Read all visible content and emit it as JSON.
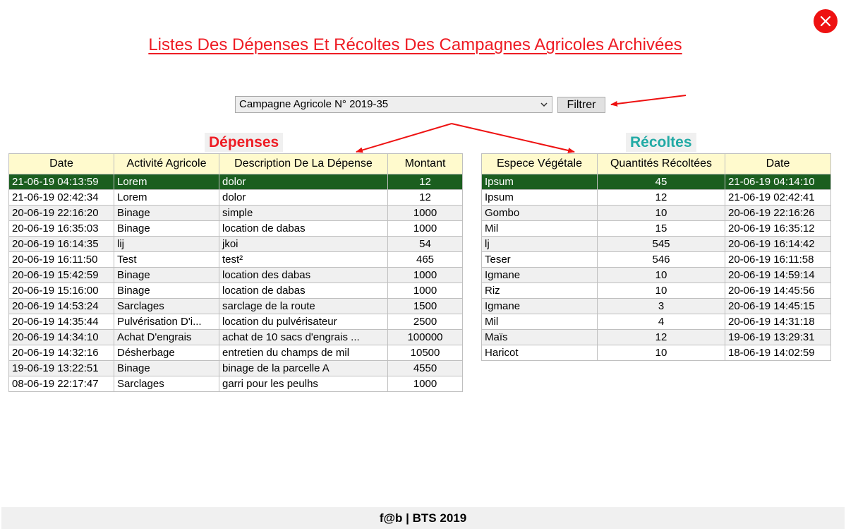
{
  "page": {
    "title": "Listes Des Dépenses Et Récoltes Des Campagnes Agricoles Archivées",
    "footer": "f@b | BTS 2019"
  },
  "filter": {
    "selected": "Campagne Agricole N° 2019-35",
    "button_label": "Filtrer"
  },
  "depenses": {
    "title": "Dépenses",
    "columns": [
      "Date",
      "Activité Agricole",
      "Description De La Dépense",
      "Montant"
    ],
    "rows": [
      {
        "date": "21-06-19 04:13:59",
        "activite": "Lorem",
        "description": "dolor",
        "montant": "12"
      },
      {
        "date": "21-06-19 02:42:34",
        "activite": "Lorem",
        "description": "dolor",
        "montant": "12"
      },
      {
        "date": "20-06-19 22:16:20",
        "activite": "Binage",
        "description": "simple",
        "montant": "1000"
      },
      {
        "date": "20-06-19 16:35:03",
        "activite": "Binage",
        "description": "location de dabas",
        "montant": "1000"
      },
      {
        "date": "20-06-19 16:14:35",
        "activite": "lij",
        "description": "jkoi",
        "montant": "54"
      },
      {
        "date": "20-06-19 16:11:50",
        "activite": "Test",
        "description": "test²",
        "montant": "465"
      },
      {
        "date": "20-06-19 15:42:59",
        "activite": "Binage",
        "description": "location des dabas",
        "montant": "1000"
      },
      {
        "date": "20-06-19 15:16:00",
        "activite": "Binage",
        "description": "location de dabas",
        "montant": "1000"
      },
      {
        "date": "20-06-19 14:53:24",
        "activite": "Sarclages",
        "description": "sarclage de la route",
        "montant": "1500"
      },
      {
        "date": "20-06-19 14:35:44",
        "activite": "Pulvérisation D'i...",
        "description": "location du pulvérisateur",
        "montant": "2500"
      },
      {
        "date": "20-06-19 14:34:10",
        "activite": "Achat D'engrais",
        "description": "achat de 10 sacs d'engrais ...",
        "montant": "100000"
      },
      {
        "date": "20-06-19 14:32:16",
        "activite": "Désherbage",
        "description": "entretien du champs de mil",
        "montant": "10500"
      },
      {
        "date": "19-06-19 13:22:51",
        "activite": "Binage",
        "description": "binage de la parcelle A",
        "montant": "4550"
      },
      {
        "date": "08-06-19 22:17:47",
        "activite": "Sarclages",
        "description": "garri pour les peulhs",
        "montant": "1000"
      }
    ]
  },
  "recoltes": {
    "title": "Récoltes",
    "columns": [
      "Espece Végétale",
      "Quantités Récoltées",
      "Date"
    ],
    "rows": [
      {
        "espece": "Ipsum",
        "quantite": "45",
        "date": "21-06-19 04:14:10"
      },
      {
        "espece": "Ipsum",
        "quantite": "12",
        "date": "21-06-19 02:42:41"
      },
      {
        "espece": "Gombo",
        "quantite": "10",
        "date": "20-06-19 22:16:26"
      },
      {
        "espece": "Mil",
        "quantite": "15",
        "date": "20-06-19 16:35:12"
      },
      {
        "espece": "lj",
        "quantite": "545",
        "date": "20-06-19 16:14:42"
      },
      {
        "espece": "Teser",
        "quantite": "546",
        "date": "20-06-19 16:11:58"
      },
      {
        "espece": "Igmane",
        "quantite": "10",
        "date": "20-06-19 14:59:14"
      },
      {
        "espece": "Riz",
        "quantite": "10",
        "date": "20-06-19 14:45:56"
      },
      {
        "espece": "Igmane",
        "quantite": "3",
        "date": "20-06-19 14:45:15"
      },
      {
        "espece": "Mil",
        "quantite": "4",
        "date": "20-06-19 14:31:18"
      },
      {
        "espece": "Maïs",
        "quantite": "12",
        "date": "19-06-19 13:29:31"
      },
      {
        "espece": "Haricot",
        "quantite": "10",
        "date": "18-06-19 14:02:59"
      }
    ]
  },
  "colors": {
    "title_red": "#ee1c24",
    "recoltes_teal": "#22aaa5",
    "selected_row": "#1b5e1f",
    "header_bg": "#fffacd",
    "close_button": "#ee1111"
  },
  "icons": {
    "close": "close-icon",
    "dropdown": "chevron-down-icon"
  }
}
